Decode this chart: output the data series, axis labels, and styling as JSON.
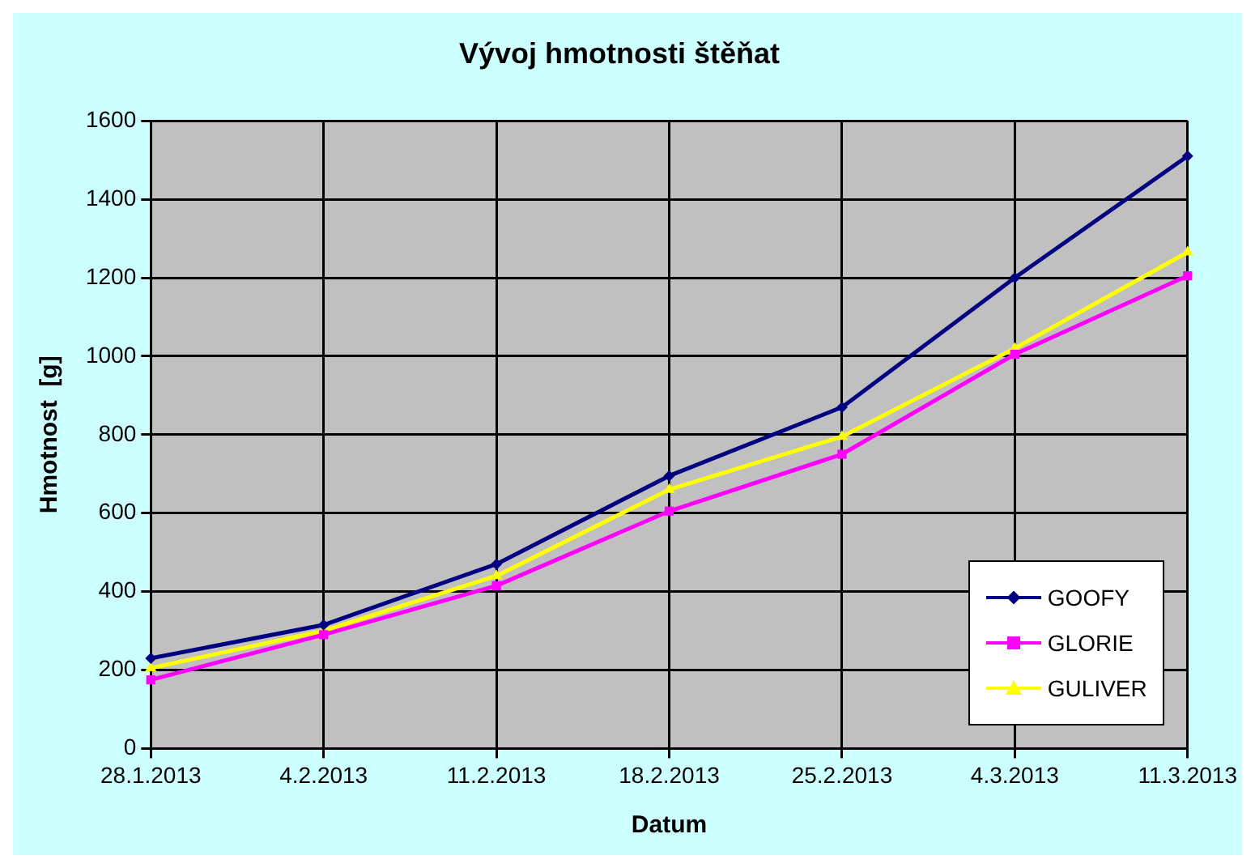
{
  "chart_data": {
    "type": "line",
    "title": "Vývoj hmotnosti štěňat",
    "xlabel": "Datum",
    "ylabel": "Hmotnost  [g]",
    "categories": [
      "28.1.2013",
      "4.2.2013",
      "11.2.2013",
      "18.2.2013",
      "25.2.2013",
      "4.3.2013",
      "11.3.2013"
    ],
    "series": [
      {
        "name": "GOOFY",
        "color": "#000080",
        "marker": "diamond",
        "values": [
          230,
          315,
          470,
          695,
          870,
          1200,
          1510
        ]
      },
      {
        "name": "GLORIE",
        "color": "#ff00ff",
        "marker": "square",
        "values": [
          175,
          290,
          415,
          605,
          750,
          1005,
          1205
        ]
      },
      {
        "name": "GULIVER",
        "color": "#ffff00",
        "marker": "triangle",
        "values": [
          205,
          300,
          440,
          660,
          795,
          1020,
          1265
        ]
      }
    ],
    "ylim": [
      0,
      1600
    ],
    "yticks": [
      0,
      200,
      400,
      600,
      800,
      1000,
      1200,
      1400,
      1600
    ],
    "grid": true,
    "legend": "bottom right",
    "line_style": "solid"
  }
}
